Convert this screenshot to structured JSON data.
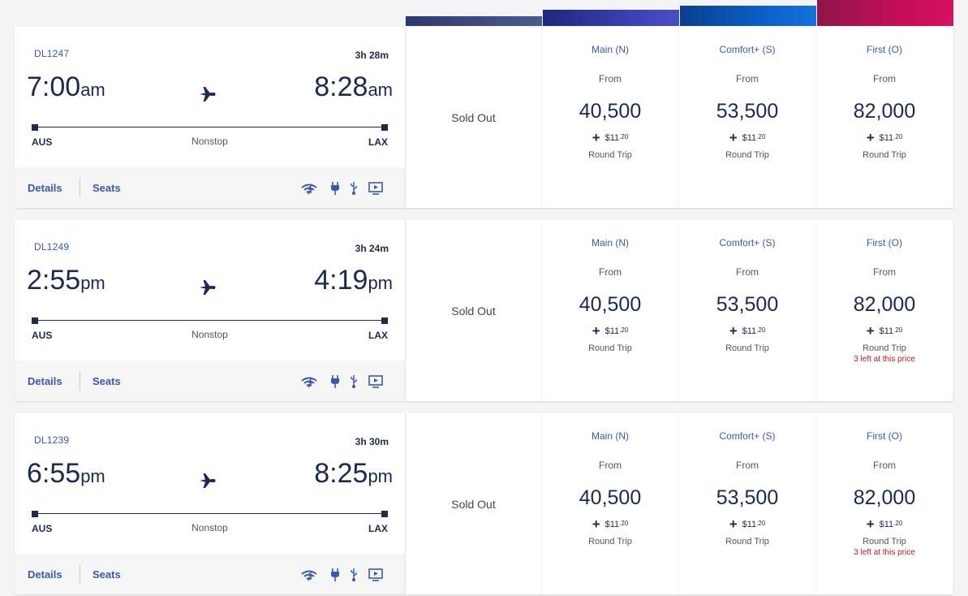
{
  "flights": [
    {
      "number": "DL1247",
      "duration": "3h 28m",
      "dep_time": "7:00",
      "dep_ampm": "am",
      "arr_time": "8:28",
      "arr_ampm": "am",
      "origin": "AUS",
      "destination": "LAX",
      "stops": "Nonstop",
      "details": "Details",
      "seats": "Seats",
      "sold_out": "Sold Out",
      "fares": [
        {
          "cabin": "Main (N)",
          "from": "From",
          "miles": "40,500",
          "fee_dollars": "$11",
          "fee_cents": ".20",
          "trip": "Round Trip",
          "note": ""
        },
        {
          "cabin": "Comfort+ (S)",
          "from": "From",
          "miles": "53,500",
          "fee_dollars": "$11",
          "fee_cents": ".20",
          "trip": "Round Trip",
          "note": ""
        },
        {
          "cabin": "First (O)",
          "from": "From",
          "miles": "82,000",
          "fee_dollars": "$11",
          "fee_cents": ".20",
          "trip": "Round Trip",
          "note": ""
        }
      ]
    },
    {
      "number": "DL1249",
      "duration": "3h 24m",
      "dep_time": "2:55",
      "dep_ampm": "pm",
      "arr_time": "4:19",
      "arr_ampm": "pm",
      "origin": "AUS",
      "destination": "LAX",
      "stops": "Nonstop",
      "details": "Details",
      "seats": "Seats",
      "sold_out": "Sold Out",
      "fares": [
        {
          "cabin": "Main (N)",
          "from": "From",
          "miles": "40,500",
          "fee_dollars": "$11",
          "fee_cents": ".20",
          "trip": "Round Trip",
          "note": ""
        },
        {
          "cabin": "Comfort+ (S)",
          "from": "From",
          "miles": "53,500",
          "fee_dollars": "$11",
          "fee_cents": ".20",
          "trip": "Round Trip",
          "note": ""
        },
        {
          "cabin": "First (O)",
          "from": "From",
          "miles": "82,000",
          "fee_dollars": "$11",
          "fee_cents": ".20",
          "trip": "Round Trip",
          "note": "3 left at this price"
        }
      ]
    },
    {
      "number": "DL1239",
      "duration": "3h 30m",
      "dep_time": "6:55",
      "dep_ampm": "pm",
      "arr_time": "8:25",
      "arr_ampm": "pm",
      "origin": "AUS",
      "destination": "LAX",
      "stops": "Nonstop",
      "details": "Details",
      "seats": "Seats",
      "sold_out": "Sold Out",
      "fares": [
        {
          "cabin": "Main (N)",
          "from": "From",
          "miles": "40,500",
          "fee_dollars": "$11",
          "fee_cents": ".20",
          "trip": "Round Trip",
          "note": ""
        },
        {
          "cabin": "Comfort+ (S)",
          "from": "From",
          "miles": "53,500",
          "fee_dollars": "$11",
          "fee_cents": ".20",
          "trip": "Round Trip",
          "note": ""
        },
        {
          "cabin": "First (O)",
          "from": "From",
          "miles": "82,000",
          "fee_dollars": "$11",
          "fee_cents": ".20",
          "trip": "Round Trip",
          "note": "3 left at this price"
        }
      ]
    }
  ],
  "amenities": [
    "wifi-icon",
    "power-icon",
    "usb-icon",
    "screen-icon"
  ],
  "colors": {
    "primary_text": "#1b2a4e",
    "link": "#3a5aa8",
    "alert": "#c4161c",
    "first_class": "#c40e58",
    "comfort": "#0b5fc8",
    "main": "#3a3fb0"
  }
}
